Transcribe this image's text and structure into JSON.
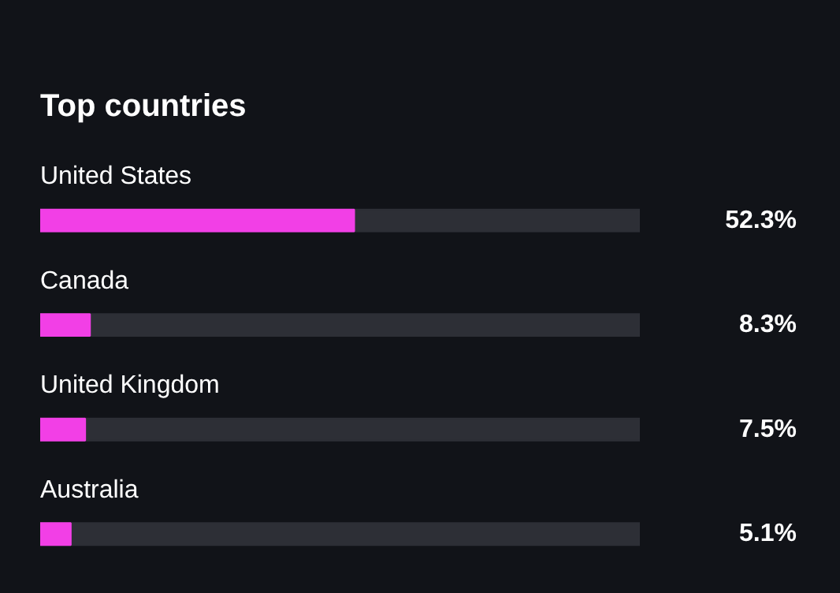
{
  "chart_data": {
    "type": "bar",
    "orientation": "horizontal",
    "title": "Top countries",
    "categories": [
      "United States",
      "Canada",
      "United Kingdom",
      "Australia"
    ],
    "values": [
      52.3,
      8.3,
      7.5,
      5.1
    ],
    "value_labels": [
      "52.3%",
      "8.3%",
      "7.5%",
      "5.1%"
    ],
    "color": "#f23fe6",
    "xlim": [
      0,
      100
    ],
    "tick_labels": false,
    "grid": false
  }
}
